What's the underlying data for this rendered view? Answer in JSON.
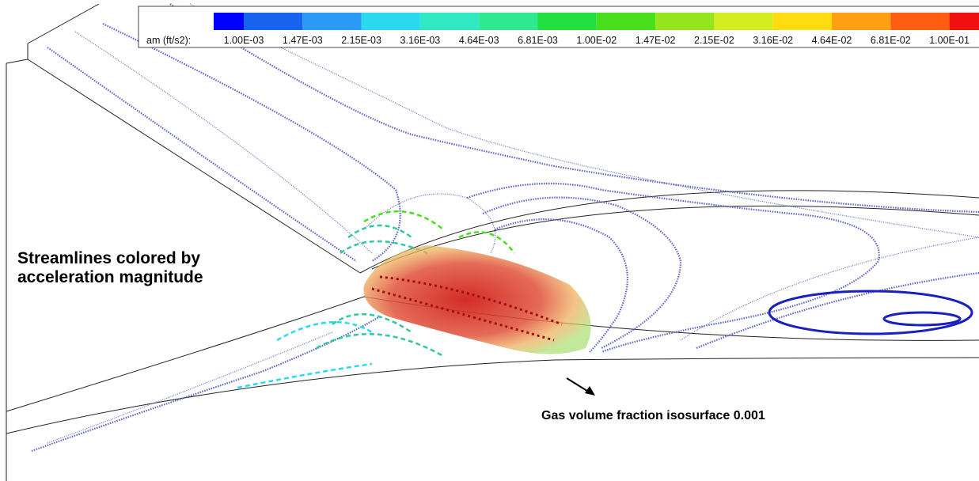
{
  "legend": {
    "title": "am (ft/s2):",
    "labels": [
      "1.00E-03",
      "1.47E-03",
      "2.15E-03",
      "3.16E-03",
      "4.64E-03",
      "6.81E-03",
      "1.00E-02",
      "1.47E-02",
      "2.15E-02",
      "3.16E-02",
      "4.64E-02",
      "6.81E-02",
      "1.00E-01"
    ],
    "colors": [
      "#0000ff",
      "#1763ef",
      "#2a9af4",
      "#2ad8f0",
      "#30e8c2",
      "#30e890",
      "#22e040",
      "#48e01e",
      "#94e41e",
      "#d2ee20",
      "#ffdc12",
      "#ffa012",
      "#ff5e12",
      "#f01010"
    ]
  },
  "annotations": {
    "streamlines": [
      "Streamlines colored by",
      "acceleration magnitude"
    ],
    "isosurface": "Gas volume fraction isosurface 0.001"
  }
}
